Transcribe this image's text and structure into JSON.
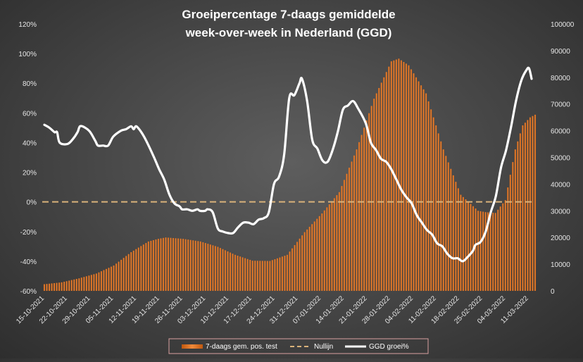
{
  "chart_data": {
    "type": "bar",
    "title_line1": "Groeipercentage 7-daags gemiddelde",
    "title_line2": "week-over-week in Nederland (GGD)",
    "y_left": {
      "min": -0.6,
      "max": 1.2,
      "step": 0.2,
      "tick_labels": [
        "-60%",
        "-40%",
        "-20%",
        "0%",
        "20%",
        "40%",
        "60%",
        "80%",
        "100%",
        "120%"
      ]
    },
    "y_right": {
      "min": 0,
      "max": 100000,
      "step": 10000,
      "tick_labels": [
        "0",
        "10000",
        "20000",
        "30000",
        "40000",
        "50000",
        "60000",
        "70000",
        "80000",
        "90000",
        "100000"
      ]
    },
    "x_dates": [
      "15-10-2021",
      "22-10-2021",
      "29-10-2021",
      "05-11-2021",
      "12-11-2021",
      "19-11-2021",
      "26-11-2021",
      "03-12-2021",
      "10-12-2021",
      "17-12-2021",
      "24-12-2021",
      "31-12-2021",
      "07-01-2022",
      "14-01-2022",
      "21-01-2022",
      "28-01-2022",
      "04-02-2022",
      "11-02-2022",
      "18-02-2022",
      "25-02-2022",
      "04-03-2022",
      "11-03-2022"
    ],
    "day_count": 149,
    "bar_keypoints": [
      [
        0,
        2500
      ],
      [
        7,
        3200
      ],
      [
        14,
        4700
      ],
      [
        21,
        6500
      ],
      [
        28,
        9500
      ],
      [
        35,
        14500
      ],
      [
        42,
        18500
      ],
      [
        46,
        19500
      ],
      [
        49,
        20000
      ],
      [
        56,
        19500
      ],
      [
        63,
        18500
      ],
      [
        70,
        16500
      ],
      [
        77,
        13500
      ],
      [
        84,
        11300
      ],
      [
        91,
        11200
      ],
      [
        98,
        13500
      ],
      [
        105,
        22000
      ],
      [
        112,
        29000
      ],
      [
        119,
        37000
      ],
      [
        126,
        53000
      ],
      [
        133,
        72000
      ],
      [
        140,
        86000
      ],
      [
        143,
        87000
      ],
      [
        147,
        84500
      ],
      [
        154,
        74000
      ],
      [
        161,
        53000
      ],
      [
        168,
        36000
      ],
      [
        175,
        30000
      ],
      [
        178,
        29500
      ],
      [
        182,
        29200
      ],
      [
        186,
        34000
      ],
      [
        190,
        53000
      ],
      [
        193,
        62000
      ],
      [
        196,
        65000
      ],
      [
        198,
        66000
      ]
    ],
    "line_keypoints": [
      [
        0,
        0.52
      ],
      [
        2,
        0.5
      ],
      [
        4,
        0.47
      ],
      [
        5,
        0.47
      ],
      [
        6,
        0.4
      ],
      [
        9,
        0.39
      ],
      [
        11,
        0.42
      ],
      [
        13,
        0.47
      ],
      [
        14,
        0.51
      ],
      [
        16,
        0.5
      ],
      [
        18,
        0.47
      ],
      [
        20,
        0.41
      ],
      [
        21,
        0.38
      ],
      [
        23,
        0.38
      ],
      [
        25,
        0.38
      ],
      [
        27,
        0.44
      ],
      [
        30,
        0.48
      ],
      [
        32,
        0.49
      ],
      [
        34,
        0.51
      ],
      [
        35,
        0.49
      ],
      [
        36,
        0.51
      ],
      [
        38,
        0.47
      ],
      [
        40,
        0.41
      ],
      [
        43,
        0.3
      ],
      [
        45,
        0.22
      ],
      [
        47,
        0.15
      ],
      [
        49,
        0.05
      ],
      [
        51,
        -0.01
      ],
      [
        53,
        -0.03
      ],
      [
        54,
        -0.05
      ],
      [
        56,
        -0.05
      ],
      [
        58,
        -0.06
      ],
      [
        60,
        -0.05
      ],
      [
        61,
        -0.06
      ],
      [
        63,
        -0.06
      ],
      [
        64,
        -0.05
      ],
      [
        66,
        -0.07
      ],
      [
        68,
        -0.18
      ],
      [
        70,
        -0.2
      ],
      [
        72,
        -0.21
      ],
      [
        74,
        -0.21
      ],
      [
        76,
        -0.17
      ],
      [
        78,
        -0.14
      ],
      [
        80,
        -0.14
      ],
      [
        82,
        -0.15
      ],
      [
        84,
        -0.12
      ],
      [
        86,
        -0.11
      ],
      [
        88,
        -0.07
      ],
      [
        90,
        0.12
      ],
      [
        92,
        0.17
      ],
      [
        94,
        0.32
      ],
      [
        96,
        0.7
      ],
      [
        98,
        0.72
      ],
      [
        100,
        0.8
      ],
      [
        101,
        0.83
      ],
      [
        103,
        0.68
      ],
      [
        105,
        0.42
      ],
      [
        107,
        0.36
      ],
      [
        109,
        0.28
      ],
      [
        111,
        0.27
      ],
      [
        113,
        0.35
      ],
      [
        115,
        0.47
      ],
      [
        117,
        0.62
      ],
      [
        119,
        0.65
      ],
      [
        121,
        0.68
      ],
      [
        123,
        0.63
      ],
      [
        126,
        0.53
      ],
      [
        128,
        0.4
      ],
      [
        130,
        0.35
      ],
      [
        132,
        0.29
      ],
      [
        134,
        0.27
      ],
      [
        136,
        0.22
      ],
      [
        138,
        0.15
      ],
      [
        140,
        0.08
      ],
      [
        142,
        0.03
      ],
      [
        144,
        -0.01
      ],
      [
        146,
        -0.09
      ],
      [
        148,
        -0.14
      ],
      [
        150,
        -0.19
      ],
      [
        152,
        -0.22
      ],
      [
        154,
        -0.28
      ],
      [
        156,
        -0.3
      ],
      [
        158,
        -0.35
      ],
      [
        160,
        -0.38
      ],
      [
        162,
        -0.38
      ],
      [
        164,
        -0.4
      ],
      [
        166,
        -0.37
      ],
      [
        168,
        -0.33
      ],
      [
        169,
        -0.29
      ],
      [
        171,
        -0.27
      ],
      [
        173,
        -0.2
      ],
      [
        175,
        -0.07
      ],
      [
        177,
        0.04
      ],
      [
        179,
        0.23
      ],
      [
        181,
        0.35
      ],
      [
        183,
        0.51
      ],
      [
        185,
        0.69
      ],
      [
        187,
        0.82
      ],
      [
        189,
        0.89
      ],
      [
        190,
        0.9
      ],
      [
        191,
        0.83
      ]
    ],
    "nullijn_value": 0,
    "legend": [
      {
        "name": "7-daags gem. pos. test",
        "kind": "bars"
      },
      {
        "name": "Nullijn",
        "kind": "dashed"
      },
      {
        "name": "GGD groei%",
        "kind": "line"
      }
    ],
    "colors": {
      "bar": "#c0580f",
      "bar_highlight": "#f08a3a",
      "line": "#ffffff",
      "nullijn": "#d9b27a",
      "text": "#ffffff",
      "axis_text": "#e6e6e6"
    }
  }
}
